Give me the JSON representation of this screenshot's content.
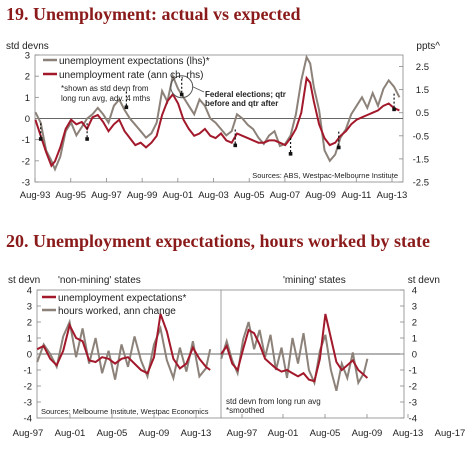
{
  "chart_data": [
    {
      "type": "line",
      "title": "19. Unemployment: actual vs expected",
      "left_axis_label": "std devns",
      "right_axis_label": "ppts^",
      "left_ylim": [
        -3,
        3
      ],
      "left_ticks": [
        "3",
        "2",
        "1",
        "0",
        "-1",
        "-2",
        "-3"
      ],
      "right_ylim": [
        -2.5,
        3
      ],
      "right_ticks": [
        "2.5",
        "1.5",
        "0.5",
        "-0.5",
        "-1.5",
        "-2.5"
      ],
      "x_ticks": [
        "Aug-93",
        "Aug-95",
        "Aug-97",
        "Aug-99",
        "Aug-01",
        "Aug-03",
        "Aug-05",
        "Aug-07",
        "Aug-09",
        "Aug-11",
        "Aug-13"
      ],
      "x_range": [
        1993.58,
        2014.2
      ],
      "legend": "top-left",
      "notes": [
        "*shown as std devn from",
        "long run avg, adv. 4 mths"
      ],
      "annotation": [
        "Federal elections; qtr",
        "before and qtr after"
      ],
      "source": "Sources: ABS, Westpac-Melbourne Institute",
      "series": [
        {
          "name": "unemployment expectations (lhs)*",
          "color": "#8c8279",
          "axis": "left",
          "x": [
            1993.6,
            1993.9,
            1994.2,
            1994.5,
            1994.7,
            1995.0,
            1995.3,
            1995.6,
            1995.9,
            1996.2,
            1996.5,
            1996.8,
            1997.1,
            1997.4,
            1997.7,
            1998.0,
            1998.3,
            1998.6,
            1998.9,
            1999.2,
            1999.5,
            1999.8,
            2000.1,
            2000.4,
            2000.7,
            2001.0,
            2001.3,
            2001.6,
            2001.9,
            2002.2,
            2002.5,
            2002.8,
            2003.1,
            2003.4,
            2003.7,
            2004.0,
            2004.3,
            2004.6,
            2004.9,
            2005.2,
            2005.5,
            2005.8,
            2006.1,
            2006.4,
            2006.7,
            2007.0,
            2007.3,
            2007.6,
            2007.9,
            2008.2,
            2008.5,
            2008.8,
            2009.0,
            2009.2,
            2009.5,
            2009.8,
            2010.1,
            2010.4,
            2010.7,
            2011.0,
            2011.3,
            2011.6,
            2011.9,
            2012.2,
            2012.5,
            2012.8,
            2013.1,
            2013.4,
            2013.7,
            2014.0
          ],
          "y": [
            0.3,
            -0.2,
            -1.5,
            -2.0,
            -2.4,
            -1.8,
            -0.6,
            -0.2,
            -0.8,
            -0.4,
            0.0,
            0.2,
            0.5,
            0.2,
            -0.2,
            0.6,
            0.9,
            0.4,
            0.0,
            -0.3,
            -0.6,
            -0.9,
            -0.7,
            -0.2,
            1.3,
            0.8,
            2.0,
            1.4,
            1.0,
            0.6,
            0.2,
            0.9,
            0.6,
            0.0,
            -0.2,
            -0.5,
            -0.8,
            -0.6,
            0.2,
            0.0,
            -0.3,
            -0.5,
            -0.9,
            -1.2,
            -0.8,
            -0.6,
            -1.3,
            -1.2,
            -0.8,
            0.2,
            1.8,
            2.9,
            2.6,
            1.5,
            0.4,
            -1.5,
            -2.0,
            -1.7,
            -0.9,
            -0.5,
            0.2,
            0.6,
            1.0,
            0.5,
            1.2,
            0.6,
            1.4,
            1.8,
            1.5,
            1.0
          ]
        },
        {
          "name": "unemployment rate (ann ch, rhs)",
          "color": "#a3192c",
          "axis": "right",
          "x": [
            1993.6,
            1993.9,
            1994.2,
            1994.5,
            1994.7,
            1995.0,
            1995.3,
            1995.6,
            1995.9,
            1996.2,
            1996.5,
            1996.8,
            1997.1,
            1997.4,
            1997.7,
            1998.0,
            1998.3,
            1998.6,
            1998.9,
            1999.2,
            1999.5,
            1999.8,
            2000.1,
            2000.4,
            2000.7,
            2001.0,
            2001.3,
            2001.6,
            2001.9,
            2002.2,
            2002.5,
            2002.8,
            2003.1,
            2003.4,
            2003.7,
            2004.0,
            2004.3,
            2004.6,
            2004.9,
            2005.2,
            2005.5,
            2005.8,
            2006.1,
            2006.4,
            2006.7,
            2007.0,
            2007.3,
            2007.6,
            2007.9,
            2008.2,
            2008.5,
            2008.8,
            2009.0,
            2009.2,
            2009.5,
            2009.8,
            2010.1,
            2010.4,
            2010.7,
            2011.0,
            2011.3,
            2011.6,
            2011.9,
            2012.2,
            2012.5,
            2012.8,
            2013.1,
            2013.4,
            2013.7,
            2014.0
          ],
          "y": [
            0.2,
            -0.5,
            -1.2,
            -1.8,
            -1.6,
            -1.0,
            -0.2,
            0.2,
            0.0,
            0.1,
            -0.2,
            0.3,
            0.4,
            0.1,
            -0.3,
            0.0,
            0.2,
            -0.3,
            -0.6,
            -0.9,
            -0.8,
            -1.0,
            -0.8,
            -0.5,
            0.4,
            1.0,
            1.3,
            0.9,
            0.2,
            -0.2,
            -0.5,
            -0.4,
            -0.2,
            -0.5,
            -0.6,
            -0.4,
            -0.7,
            -0.8,
            -0.4,
            -0.5,
            -0.6,
            -0.7,
            -0.8,
            -0.8,
            -0.7,
            -0.7,
            -0.8,
            -0.9,
            -0.6,
            -0.2,
            0.5,
            2.0,
            1.8,
            1.0,
            0.0,
            -0.6,
            -0.9,
            -0.8,
            -0.5,
            -0.3,
            0.0,
            0.2,
            0.3,
            0.4,
            0.5,
            0.6,
            0.8,
            0.9,
            0.7,
            0.6
          ]
        }
      ],
      "election_markers": [
        [
          1993.9,
          -0.6
        ],
        [
          1996.5,
          -0.6
        ],
        [
          1998.7,
          0.9
        ],
        [
          2001.8,
          1.5
        ],
        [
          2004.8,
          -0.9
        ],
        [
          2007.9,
          -1.3
        ],
        [
          2010.6,
          -1.0
        ],
        [
          2013.7,
          0.8
        ]
      ]
    },
    {
      "type": "line",
      "title": "20. Unemployment expectations, hours worked by state",
      "left_axis_label": "st devn",
      "right_axis_label": "st devn",
      "ylim": [
        -4,
        4
      ],
      "y_ticks": [
        "4",
        "3",
        "2",
        "1",
        "0",
        "-1",
        "-2",
        "-3",
        "-4"
      ],
      "panel_labels": [
        "'non-mining' states",
        "'mining' states"
      ],
      "x_ticks": [
        "Aug-97",
        "Aug-01",
        "Aug-05",
        "Aug-09",
        "Aug-13",
        "Aug-97",
        "Aug-01",
        "Aug-05",
        "Aug-09",
        "Aug-13",
        "Aug-17"
      ],
      "legend": "top-left",
      "note": [
        "std devn from long run avg",
        "*smoothed"
      ],
      "source": "Sources: Melbourne Institute, Westpac Economics",
      "panels": [
        {
          "label": "'non-mining' states",
          "series": [
            {
              "name": "unemployment expectations*",
              "color": "#a3192c",
              "x": [
                1997.6,
                1998.2,
                1998.8,
                1999.4,
                2000.0,
                2000.6,
                2001.2,
                2001.8,
                2002.4,
                2003.0,
                2003.6,
                2004.2,
                2004.8,
                2005.4,
                2006.0,
                2006.6,
                2007.2,
                2007.8,
                2008.4,
                2009.0,
                2009.6,
                2010.2,
                2010.8,
                2011.4,
                2012.0,
                2012.6,
                2013.2,
                2013.6
              ],
              "y": [
                0.3,
                0.5,
                -0.3,
                -0.7,
                0.2,
                1.8,
                1.0,
                0.8,
                -0.4,
                -0.5,
                -0.2,
                -0.3,
                -0.6,
                -0.3,
                -0.2,
                -0.6,
                -1.0,
                -1.2,
                -0.2,
                2.5,
                1.4,
                -0.3,
                -0.9,
                -0.6,
                0.4,
                -0.3,
                -0.8,
                -1.0
              ]
            },
            {
              "name": "hours worked, ann change",
              "color": "#8c8279",
              "x": [
                1997.6,
                1998.2,
                1998.8,
                1999.4,
                2000.0,
                2000.6,
                2001.2,
                2001.8,
                2002.4,
                2003.0,
                2003.6,
                2004.2,
                2004.8,
                2005.4,
                2006.0,
                2006.6,
                2007.2,
                2007.8,
                2008.4,
                2009.0,
                2009.6,
                2010.2,
                2010.8,
                2011.4,
                2012.0,
                2012.6,
                2013.2,
                2013.6
              ],
              "y": [
                -0.5,
                0.6,
                0.0,
                -0.8,
                1.1,
                2.0,
                -0.2,
                1.6,
                -0.6,
                1.0,
                -1.2,
                0.2,
                -1.6,
                0.6,
                -0.8,
                1.1,
                -0.4,
                -1.4,
                0.6,
                1.6,
                -0.4,
                -1.5,
                0.4,
                -1.1,
                0.8,
                -1.4,
                -0.9,
                0.3
              ]
            }
          ]
        },
        {
          "label": "'mining' states",
          "series": [
            {
              "name": "unemployment expectations*",
              "color": "#a3192c",
              "x": [
                1997.6,
                1998.2,
                1998.8,
                1999.4,
                2000.0,
                2000.6,
                2001.2,
                2001.8,
                2002.4,
                2003.0,
                2003.6,
                2004.2,
                2004.8,
                2005.4,
                2006.0,
                2006.6,
                2007.2,
                2007.8,
                2008.4,
                2009.0,
                2009.6,
                2010.2,
                2010.8,
                2011.4,
                2012.0,
                2012.6,
                2013.2,
                2013.6
              ],
              "y": [
                0.0,
                0.5,
                -0.6,
                -1.0,
                0.3,
                1.5,
                1.3,
                0.6,
                -0.3,
                -0.6,
                -0.9,
                -1.1,
                -1.0,
                -1.2,
                -1.4,
                -1.2,
                -1.6,
                -1.7,
                -0.3,
                2.5,
                1.0,
                -0.5,
                -1.0,
                -0.7,
                -0.4,
                -1.0,
                -1.3,
                -1.5
              ]
            },
            {
              "name": "hours worked, ann change",
              "color": "#8c8279",
              "x": [
                1997.6,
                1998.2,
                1998.8,
                1999.4,
                2000.0,
                2000.6,
                2001.2,
                2001.8,
                2002.4,
                2003.0,
                2003.6,
                2004.2,
                2004.8,
                2005.4,
                2006.0,
                2006.6,
                2007.2,
                2007.8,
                2008.4,
                2009.0,
                2009.6,
                2010.2,
                2010.8,
                2011.4,
                2012.0,
                2012.6,
                2013.2,
                2013.6
              ],
              "y": [
                -0.3,
                0.8,
                -0.4,
                -1.2,
                0.9,
                2.0,
                0.3,
                1.5,
                -0.2,
                1.2,
                -1.0,
                0.4,
                -1.5,
                1.0,
                -0.6,
                1.3,
                -1.0,
                -1.8,
                0.2,
                1.2,
                -1.0,
                -2.3,
                -0.6,
                -1.5,
                0.1,
                -1.8,
                -1.2,
                -0.3
              ]
            }
          ]
        }
      ]
    }
  ]
}
